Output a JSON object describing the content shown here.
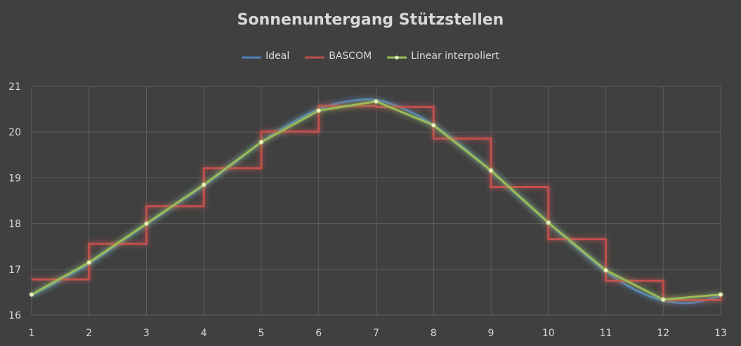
{
  "chart_data": {
    "type": "line",
    "title": "Sonnenuntergang Stützstellen",
    "x": [
      1,
      2,
      3,
      4,
      5,
      6,
      7,
      8,
      9,
      10,
      11,
      12,
      13
    ],
    "ylim": [
      16,
      21
    ],
    "xlim": [
      1,
      13
    ],
    "yticks": [
      16,
      17,
      18,
      19,
      20,
      21
    ],
    "xticks": [
      1,
      2,
      3,
      4,
      5,
      6,
      7,
      8,
      9,
      10,
      11,
      12,
      13
    ],
    "grid": true,
    "legend_position": "top",
    "series": [
      {
        "name": "Ideal",
        "color": "#4f81bd",
        "smooth": true,
        "x": [
          1,
          1.5,
          2,
          2.5,
          3,
          3.5,
          4,
          4.5,
          5,
          5.5,
          6,
          6.5,
          7,
          7.5,
          8,
          8.5,
          9,
          9.5,
          10,
          10.5,
          11,
          11.5,
          12,
          12.5,
          13
        ],
        "values": [
          16.43,
          16.76,
          17.12,
          17.55,
          17.98,
          18.41,
          18.83,
          19.3,
          19.78,
          20.18,
          20.5,
          20.67,
          20.7,
          20.5,
          20.15,
          19.68,
          19.15,
          18.58,
          18.02,
          17.47,
          16.96,
          16.56,
          16.32,
          16.27,
          16.42
        ]
      },
      {
        "name": "BASCOM",
        "color": "#c0504d",
        "step": true,
        "values": [
          16.78,
          17.56,
          18.38,
          19.21,
          20.01,
          20.57,
          20.55,
          19.86,
          18.8,
          17.66,
          16.75,
          16.33,
          16.45
        ]
      },
      {
        "name": "Linear interpoliert",
        "color": "#9bbb59",
        "marker": "dot",
        "values": [
          16.45,
          17.15,
          18.0,
          18.85,
          19.78,
          20.47,
          20.67,
          20.15,
          19.16,
          18.02,
          16.98,
          16.34,
          16.45
        ]
      }
    ]
  }
}
